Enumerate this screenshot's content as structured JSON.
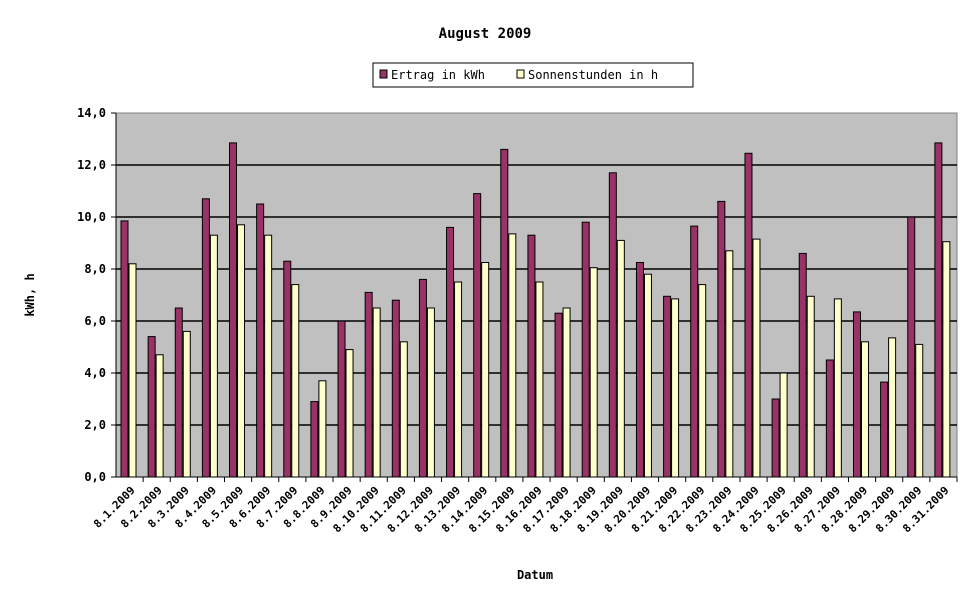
{
  "chart_data": {
    "type": "bar",
    "title": "August 2009",
    "xlabel": "Datum",
    "ylabel": "kWh, h",
    "ylim": [
      0,
      14
    ],
    "yticks": [
      "0,0",
      "2,0",
      "4,0",
      "6,0",
      "8,0",
      "10,0",
      "12,0",
      "14,0"
    ],
    "grid": true,
    "legend_position": "top",
    "plot_background": "#C0C0C0",
    "categories": [
      "8.1.2009",
      "8.2.2009",
      "8.3.2009",
      "8.4.2009",
      "8.5.2009",
      "8.6.2009",
      "8.7.2009",
      "8.8.2009",
      "8.9.2009",
      "8.10.2009",
      "8.11.2009",
      "8.12.2009",
      "8.13.2009",
      "8.14.2009",
      "8.15.2009",
      "8.16.2009",
      "8.17.2009",
      "8.18.2009",
      "8.19.2009",
      "8.20.2009",
      "8.21.2009",
      "8.22.2009",
      "8.23.2009",
      "8.24.2009",
      "8.25.2009",
      "8.26.2009",
      "8.27.2009",
      "8.28.2009",
      "8.29.2009",
      "8.30.2009",
      "8.31.2009"
    ],
    "series": [
      {
        "name": "Ertrag in kWh",
        "color": "#993366",
        "values": [
          9.85,
          5.4,
          6.5,
          10.7,
          12.85,
          10.5,
          8.3,
          2.9,
          6.0,
          7.1,
          6.8,
          7.6,
          9.6,
          10.9,
          12.6,
          9.3,
          6.3,
          9.8,
          11.7,
          8.25,
          6.95,
          9.65,
          10.6,
          12.45,
          3.0,
          8.6,
          4.5,
          6.35,
          3.65,
          10.0,
          12.85
        ]
      },
      {
        "name": "Sonnenstunden in h",
        "color": "#FFFFCC",
        "values": [
          8.2,
          4.7,
          5.6,
          9.3,
          9.7,
          9.3,
          7.4,
          3.7,
          4.9,
          6.5,
          5.2,
          6.5,
          7.5,
          8.25,
          9.35,
          7.5,
          6.5,
          8.05,
          9.1,
          7.8,
          6.85,
          7.4,
          8.7,
          9.15,
          4.0,
          6.95,
          6.85,
          5.2,
          5.35,
          5.1,
          9.05
        ]
      }
    ]
  }
}
